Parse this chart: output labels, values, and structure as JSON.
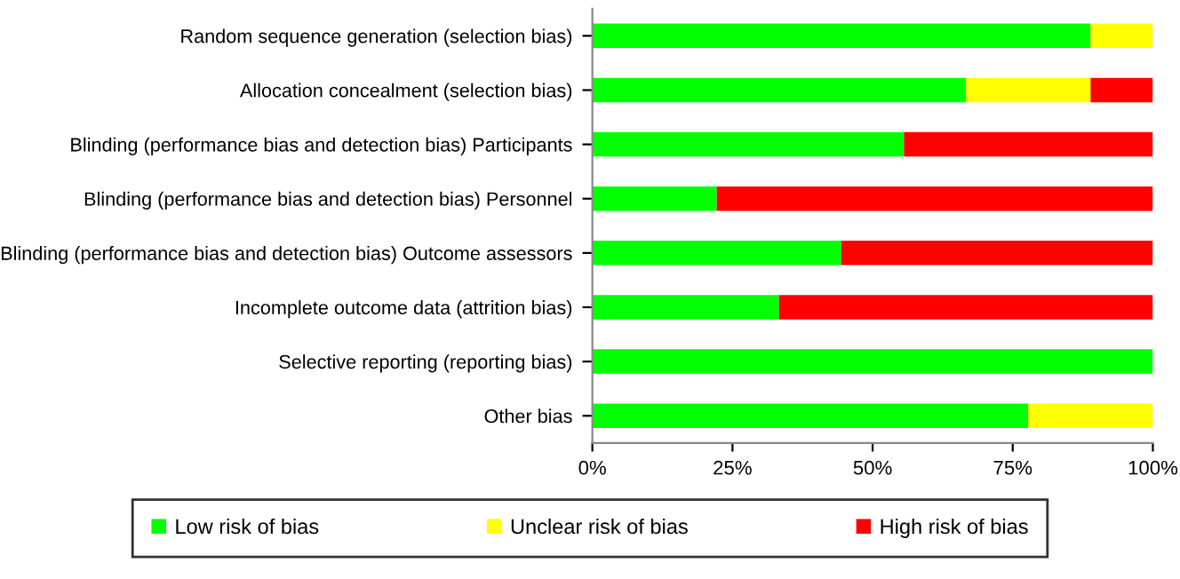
{
  "chart_data": {
    "type": "bar",
    "orientation": "horizontal",
    "stacked": true,
    "categories": [
      "Random sequence generation (selection bias)",
      "Allocation concealment (selection bias)",
      "Blinding (performance bias and detection bias) Participants",
      "Blinding (performance bias and detection bias) Personnel",
      "Blinding (performance bias and detection bias) Outcome assessors",
      "Incomplete outcome data (attrition bias)",
      "Selective reporting (reporting bias)",
      "Other bias"
    ],
    "series": [
      {
        "name": "Low risk of bias",
        "color": "#00ff00",
        "values": [
          88.9,
          66.7,
          55.6,
          22.2,
          44.4,
          33.3,
          100,
          77.8
        ]
      },
      {
        "name": "Unclear risk of bias",
        "color": "#ffff00",
        "values": [
          11.1,
          22.2,
          0,
          0,
          0,
          0,
          0,
          22.2
        ]
      },
      {
        "name": "High risk of bias",
        "color": "#ff0000",
        "values": [
          0,
          11.1,
          44.4,
          77.8,
          55.6,
          66.7,
          0,
          0
        ]
      }
    ],
    "xlim": [
      0,
      100
    ],
    "xticks": [
      {
        "value": 0,
        "label": "0%"
      },
      {
        "value": 25,
        "label": "25%"
      },
      {
        "value": 50,
        "label": "50%"
      },
      {
        "value": 75,
        "label": "75%"
      },
      {
        "value": 100,
        "label": "100%"
      }
    ],
    "grid": false,
    "legend": "bottom"
  }
}
